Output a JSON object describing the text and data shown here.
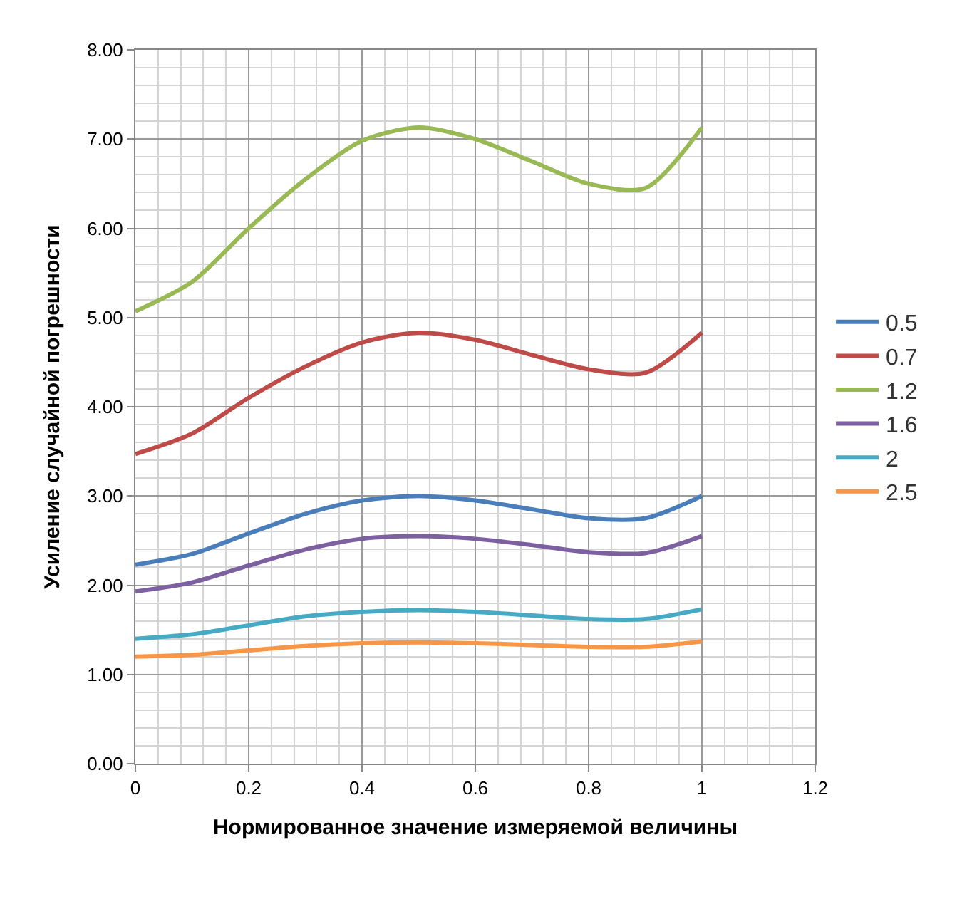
{
  "chart_data": {
    "type": "line",
    "xlabel": "Нормированное значение измеряемой величины",
    "ylabel": "Усиление случайной погрешности",
    "x": [
      0,
      0.1,
      0.2,
      0.3,
      0.4,
      0.5,
      0.6,
      0.7,
      0.8,
      0.9,
      1
    ],
    "series": [
      {
        "name": "0.5",
        "color": "#4a7ebb",
        "values": [
          2.23,
          2.35,
          2.58,
          2.8,
          2.95,
          3.0,
          2.95,
          2.85,
          2.75,
          2.75,
          3.0
        ]
      },
      {
        "name": "0.7",
        "color": "#be4b48",
        "values": [
          3.47,
          3.7,
          4.1,
          4.45,
          4.72,
          4.83,
          4.75,
          4.58,
          4.42,
          4.38,
          4.83
        ]
      },
      {
        "name": "1.2",
        "color": "#98b954",
        "values": [
          5.07,
          5.4,
          6.0,
          6.55,
          6.98,
          7.13,
          7.0,
          6.75,
          6.5,
          6.45,
          7.13
        ]
      },
      {
        "name": "1.6",
        "color": "#7d60a0",
        "values": [
          1.93,
          2.03,
          2.22,
          2.4,
          2.52,
          2.55,
          2.52,
          2.45,
          2.37,
          2.36,
          2.55
        ]
      },
      {
        "name": "2",
        "color": "#46aac5",
        "values": [
          1.4,
          1.45,
          1.55,
          1.65,
          1.7,
          1.72,
          1.7,
          1.66,
          1.62,
          1.62,
          1.73
        ]
      },
      {
        "name": "2.5",
        "color": "#f79646",
        "values": [
          1.2,
          1.22,
          1.27,
          1.32,
          1.35,
          1.36,
          1.35,
          1.33,
          1.31,
          1.31,
          1.37
        ]
      }
    ],
    "xlim": [
      0,
      1.2
    ],
    "xticks": [
      0,
      0.2,
      0.4,
      0.6,
      0.8,
      1,
      1.2
    ],
    "ylim": [
      0,
      8
    ],
    "yticks": [
      {
        "value": 0,
        "label": "0.00"
      },
      {
        "value": 1,
        "label": "1.00"
      },
      {
        "value": 2,
        "label": "2.00"
      },
      {
        "value": 3,
        "label": "3.00"
      },
      {
        "value": 4,
        "label": "4.00"
      },
      {
        "value": 5,
        "label": "5.00"
      },
      {
        "value": 6,
        "label": "6.00"
      },
      {
        "value": 7,
        "label": "7.00"
      },
      {
        "value": 8,
        "label": "8.00"
      }
    ],
    "grid": true,
    "legend": "right",
    "marker": "none",
    "line_style": "solid"
  }
}
